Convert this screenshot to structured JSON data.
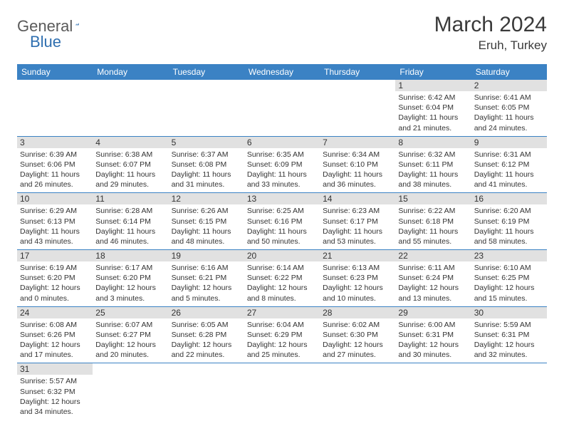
{
  "logo": {
    "word1": "General",
    "word2": "Blue"
  },
  "title": "March 2024",
  "location": "Eruh, Turkey",
  "headers": [
    "Sunday",
    "Monday",
    "Tuesday",
    "Wednesday",
    "Thursday",
    "Friday",
    "Saturday"
  ],
  "colors": {
    "header_bg": "#3b82c4",
    "header_text": "#ffffff",
    "daynum_bg": "#e1e1e1",
    "border": "#3b82c4",
    "text": "#333333",
    "logo_gray": "#5a5a5a",
    "logo_blue": "#2f6fb0"
  },
  "weeks": [
    [
      null,
      null,
      null,
      null,
      null,
      {
        "n": "1",
        "sr": "Sunrise: 6:42 AM",
        "ss": "Sunset: 6:04 PM",
        "d1": "Daylight: 11 hours",
        "d2": "and 21 minutes."
      },
      {
        "n": "2",
        "sr": "Sunrise: 6:41 AM",
        "ss": "Sunset: 6:05 PM",
        "d1": "Daylight: 11 hours",
        "d2": "and 24 minutes."
      }
    ],
    [
      {
        "n": "3",
        "sr": "Sunrise: 6:39 AM",
        "ss": "Sunset: 6:06 PM",
        "d1": "Daylight: 11 hours",
        "d2": "and 26 minutes."
      },
      {
        "n": "4",
        "sr": "Sunrise: 6:38 AM",
        "ss": "Sunset: 6:07 PM",
        "d1": "Daylight: 11 hours",
        "d2": "and 29 minutes."
      },
      {
        "n": "5",
        "sr": "Sunrise: 6:37 AM",
        "ss": "Sunset: 6:08 PM",
        "d1": "Daylight: 11 hours",
        "d2": "and 31 minutes."
      },
      {
        "n": "6",
        "sr": "Sunrise: 6:35 AM",
        "ss": "Sunset: 6:09 PM",
        "d1": "Daylight: 11 hours",
        "d2": "and 33 minutes."
      },
      {
        "n": "7",
        "sr": "Sunrise: 6:34 AM",
        "ss": "Sunset: 6:10 PM",
        "d1": "Daylight: 11 hours",
        "d2": "and 36 minutes."
      },
      {
        "n": "8",
        "sr": "Sunrise: 6:32 AM",
        "ss": "Sunset: 6:11 PM",
        "d1": "Daylight: 11 hours",
        "d2": "and 38 minutes."
      },
      {
        "n": "9",
        "sr": "Sunrise: 6:31 AM",
        "ss": "Sunset: 6:12 PM",
        "d1": "Daylight: 11 hours",
        "d2": "and 41 minutes."
      }
    ],
    [
      {
        "n": "10",
        "sr": "Sunrise: 6:29 AM",
        "ss": "Sunset: 6:13 PM",
        "d1": "Daylight: 11 hours",
        "d2": "and 43 minutes."
      },
      {
        "n": "11",
        "sr": "Sunrise: 6:28 AM",
        "ss": "Sunset: 6:14 PM",
        "d1": "Daylight: 11 hours",
        "d2": "and 46 minutes."
      },
      {
        "n": "12",
        "sr": "Sunrise: 6:26 AM",
        "ss": "Sunset: 6:15 PM",
        "d1": "Daylight: 11 hours",
        "d2": "and 48 minutes."
      },
      {
        "n": "13",
        "sr": "Sunrise: 6:25 AM",
        "ss": "Sunset: 6:16 PM",
        "d1": "Daylight: 11 hours",
        "d2": "and 50 minutes."
      },
      {
        "n": "14",
        "sr": "Sunrise: 6:23 AM",
        "ss": "Sunset: 6:17 PM",
        "d1": "Daylight: 11 hours",
        "d2": "and 53 minutes."
      },
      {
        "n": "15",
        "sr": "Sunrise: 6:22 AM",
        "ss": "Sunset: 6:18 PM",
        "d1": "Daylight: 11 hours",
        "d2": "and 55 minutes."
      },
      {
        "n": "16",
        "sr": "Sunrise: 6:20 AM",
        "ss": "Sunset: 6:19 PM",
        "d1": "Daylight: 11 hours",
        "d2": "and 58 minutes."
      }
    ],
    [
      {
        "n": "17",
        "sr": "Sunrise: 6:19 AM",
        "ss": "Sunset: 6:20 PM",
        "d1": "Daylight: 12 hours",
        "d2": "and 0 minutes."
      },
      {
        "n": "18",
        "sr": "Sunrise: 6:17 AM",
        "ss": "Sunset: 6:20 PM",
        "d1": "Daylight: 12 hours",
        "d2": "and 3 minutes."
      },
      {
        "n": "19",
        "sr": "Sunrise: 6:16 AM",
        "ss": "Sunset: 6:21 PM",
        "d1": "Daylight: 12 hours",
        "d2": "and 5 minutes."
      },
      {
        "n": "20",
        "sr": "Sunrise: 6:14 AM",
        "ss": "Sunset: 6:22 PM",
        "d1": "Daylight: 12 hours",
        "d2": "and 8 minutes."
      },
      {
        "n": "21",
        "sr": "Sunrise: 6:13 AM",
        "ss": "Sunset: 6:23 PM",
        "d1": "Daylight: 12 hours",
        "d2": "and 10 minutes."
      },
      {
        "n": "22",
        "sr": "Sunrise: 6:11 AM",
        "ss": "Sunset: 6:24 PM",
        "d1": "Daylight: 12 hours",
        "d2": "and 13 minutes."
      },
      {
        "n": "23",
        "sr": "Sunrise: 6:10 AM",
        "ss": "Sunset: 6:25 PM",
        "d1": "Daylight: 12 hours",
        "d2": "and 15 minutes."
      }
    ],
    [
      {
        "n": "24",
        "sr": "Sunrise: 6:08 AM",
        "ss": "Sunset: 6:26 PM",
        "d1": "Daylight: 12 hours",
        "d2": "and 17 minutes."
      },
      {
        "n": "25",
        "sr": "Sunrise: 6:07 AM",
        "ss": "Sunset: 6:27 PM",
        "d1": "Daylight: 12 hours",
        "d2": "and 20 minutes."
      },
      {
        "n": "26",
        "sr": "Sunrise: 6:05 AM",
        "ss": "Sunset: 6:28 PM",
        "d1": "Daylight: 12 hours",
        "d2": "and 22 minutes."
      },
      {
        "n": "27",
        "sr": "Sunrise: 6:04 AM",
        "ss": "Sunset: 6:29 PM",
        "d1": "Daylight: 12 hours",
        "d2": "and 25 minutes."
      },
      {
        "n": "28",
        "sr": "Sunrise: 6:02 AM",
        "ss": "Sunset: 6:30 PM",
        "d1": "Daylight: 12 hours",
        "d2": "and 27 minutes."
      },
      {
        "n": "29",
        "sr": "Sunrise: 6:00 AM",
        "ss": "Sunset: 6:31 PM",
        "d1": "Daylight: 12 hours",
        "d2": "and 30 minutes."
      },
      {
        "n": "30",
        "sr": "Sunrise: 5:59 AM",
        "ss": "Sunset: 6:31 PM",
        "d1": "Daylight: 12 hours",
        "d2": "and 32 minutes."
      }
    ],
    [
      {
        "n": "31",
        "sr": "Sunrise: 5:57 AM",
        "ss": "Sunset: 6:32 PM",
        "d1": "Daylight: 12 hours",
        "d2": "and 34 minutes."
      },
      null,
      null,
      null,
      null,
      null,
      null
    ]
  ]
}
